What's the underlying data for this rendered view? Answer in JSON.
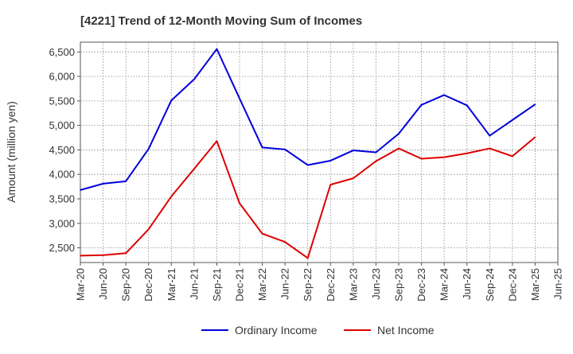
{
  "chart_data": {
    "type": "line",
    "title": "[4221]  Trend of 12-Month Moving Sum of Incomes",
    "ylabel": "Amount (million yen)",
    "xlabel": "",
    "ylim": [
      2200,
      6700
    ],
    "yticks": [
      2500,
      3000,
      3500,
      4000,
      4500,
      5000,
      5500,
      6000,
      6500
    ],
    "ytick_labels": [
      "2,500",
      "3,000",
      "3,500",
      "4,000",
      "4,500",
      "5,000",
      "5,500",
      "6,000",
      "6,500"
    ],
    "categories": [
      "Mar-20",
      "Jun-20",
      "Sep-20",
      "Dec-20",
      "Mar-21",
      "Jun-21",
      "Sep-21",
      "Dec-21",
      "Mar-22",
      "Jun-22",
      "Sep-22",
      "Dec-22",
      "Mar-23",
      "Jun-23",
      "Sep-23",
      "Dec-23",
      "Mar-24",
      "Jun-24",
      "Sep-24",
      "Dec-24",
      "Mar-25",
      "Jun-25"
    ],
    "grid": true,
    "legend_position": "bottom",
    "series": [
      {
        "name": "Ordinary Income",
        "color": "#0000dd",
        "values": [
          3680,
          3810,
          3860,
          4520,
          5510,
          5940,
          6560,
          5550,
          4550,
          4510,
          4190,
          4280,
          4490,
          4450,
          4830,
          5420,
          5620,
          5410,
          4790,
          5110,
          5430,
          null
        ]
      },
      {
        "name": "Net Income",
        "color": "#dd0000",
        "values": [
          2340,
          2350,
          2390,
          2880,
          3550,
          4110,
          4680,
          3410,
          2790,
          2620,
          2290,
          3790,
          3920,
          4270,
          4530,
          4320,
          4350,
          4430,
          4530,
          4370,
          4760,
          null
        ]
      }
    ]
  }
}
